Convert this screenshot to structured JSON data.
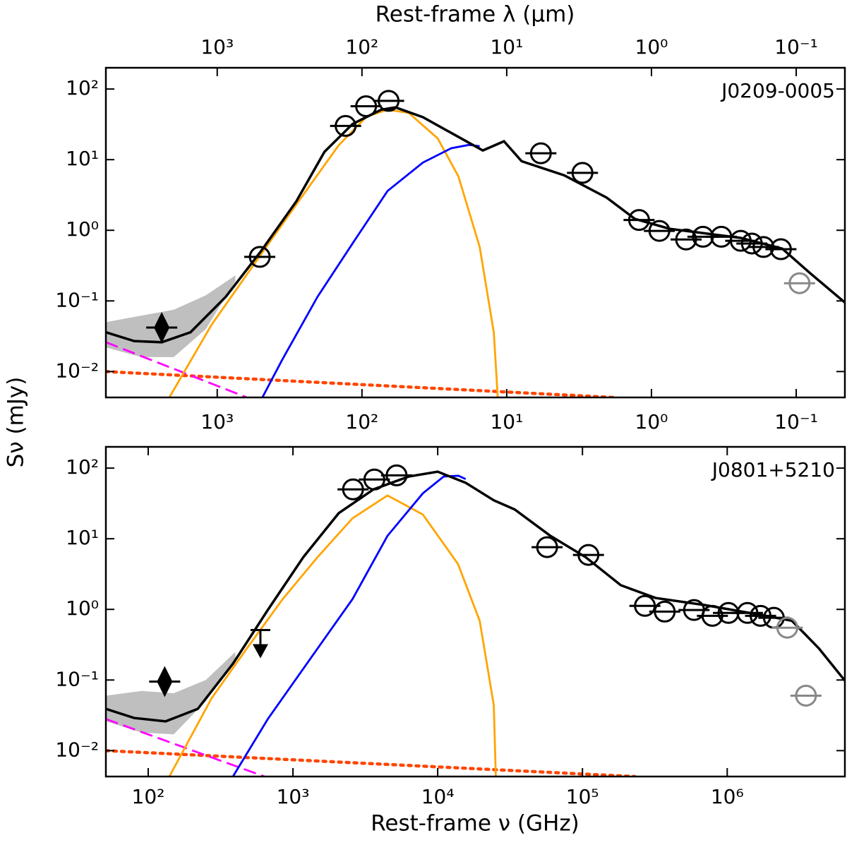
{
  "chart_data": [
    {
      "type": "line",
      "title": "J0209-0005",
      "x2label": "Rest-frame λ (μm)",
      "ylabel": "Sν (mJy)",
      "xscale": "log",
      "yscale": "log",
      "xlim": [
        51,
        6500000
      ],
      "ylim": [
        0.0043,
        200
      ],
      "x2lim": [
        5878,
        0.0461
      ],
      "x2ticks": [
        {
          "value": 1000,
          "label": "10³"
        },
        {
          "value": 100,
          "label": "10²"
        },
        {
          "value": 10,
          "label": "10¹"
        },
        {
          "value": 1,
          "label": "10⁰"
        },
        {
          "value": 0.1,
          "label": "10⁻¹"
        }
      ],
      "yticks": [
        {
          "value": 100,
          "label": "10²"
        },
        {
          "value": 10,
          "label": "10¹"
        },
        {
          "value": 1,
          "label": "10⁰"
        },
        {
          "value": 0.1,
          "label": "10⁻¹"
        },
        {
          "value": 0.01,
          "label": "10⁻²"
        }
      ],
      "band": {
        "color": "#bfbfbf",
        "x": [
          51,
          90,
          150,
          250,
          400
        ],
        "lower": [
          0.022,
          0.016,
          0.016,
          0.04,
          0.19
        ],
        "upper": [
          0.05,
          0.062,
          0.075,
          0.12,
          0.23
        ]
      },
      "lines": [
        {
          "color": "#ff4500",
          "style": "dotted",
          "x": [
            51,
            164000
          ],
          "values": [
            0.01,
            0.0043
          ]
        },
        {
          "color": "#ff00ff",
          "style": "dashed",
          "x": [
            51,
            480
          ],
          "values": [
            0.026,
            0.0043
          ]
        },
        {
          "color": "#ffa500",
          "style": "solid",
          "x": [
            140,
            274,
            603,
            1180,
            2070,
            3240,
            4500,
            6300,
            10000,
            13900,
            19500,
            24400,
            26000
          ],
          "values": [
            0.0043,
            0.046,
            0.46,
            3.2,
            16,
            41,
            51,
            46,
            20,
            5.8,
            0.58,
            0.036,
            0.0043
          ]
        },
        {
          "color": "#0000ff",
          "style": "solid",
          "x": [
            615,
            840,
            1480,
            2580,
            4500,
            7900,
            12400,
            16500,
            19500
          ],
          "values": [
            0.0043,
            0.0145,
            0.115,
            0.65,
            3.6,
            9.1,
            14.5,
            16.2,
            15.5
          ]
        },
        {
          "color": "#000000",
          "style": "solid",
          "x": [
            51,
            80,
            124,
            196,
            343,
            603,
            1055,
            1650,
            2580,
            4070,
            5100,
            7900,
            13900,
            20500,
            28700,
            38000,
            74800,
            147000,
            230000,
            400000,
            1240000,
            2400000,
            3800000,
            6500000
          ],
          "values": [
            0.036,
            0.027,
            0.026,
            0.036,
            0.114,
            0.51,
            2.57,
            12.9,
            32,
            51,
            55,
            40,
            21,
            13.5,
            18.2,
            9.5,
            6.0,
            2.9,
            1.45,
            1.05,
            0.78,
            0.55,
            0.24,
            0.095
          ]
        }
      ],
      "points": [
        {
          "marker": "circle",
          "color": "#000000",
          "x": [
            590,
            2310,
            3200,
            4580,
            51600,
            100000,
            246000,
            340000,
            520000,
            680000,
            910000,
            1240000,
            1480000,
            1780000,
            2350000
          ],
          "values": [
            0.42,
            30,
            57,
            68,
            12.3,
            6.5,
            1.4,
            0.98,
            0.74,
            0.81,
            0.81,
            0.71,
            0.65,
            0.58,
            0.54
          ]
        },
        {
          "marker": "circle",
          "color": "#888888",
          "x": [
            3160000
          ],
          "values": [
            0.178
          ]
        },
        {
          "marker": "diamond",
          "color": "#000000",
          "x": [
            124
          ],
          "values": [
            0.042
          ]
        }
      ]
    },
    {
      "type": "line",
      "title": "J0801+5210",
      "xlabel": "Rest-frame ν (GHz)",
      "xscale": "log",
      "yscale": "log",
      "xlim": [
        51,
        6500000
      ],
      "ylim": [
        0.0043,
        200
      ],
      "xticks": [
        {
          "value": 100,
          "label": "10²"
        },
        {
          "value": 1000,
          "label": "10³"
        },
        {
          "value": 10000,
          "label": "10⁴"
        },
        {
          "value": 100000,
          "label": "10⁵"
        },
        {
          "value": 1000000,
          "label": "10⁶"
        }
      ],
      "yticks": [
        {
          "value": 100,
          "label": "10²"
        },
        {
          "value": 10,
          "label": "10¹"
        },
        {
          "value": 1,
          "label": "10⁰"
        },
        {
          "value": 0.1,
          "label": "10⁻¹"
        },
        {
          "value": 0.01,
          "label": "10⁻²"
        }
      ],
      "band": {
        "color": "#bfbfbf",
        "x": [
          51,
          90,
          150,
          250,
          400
        ],
        "lower": [
          0.026,
          0.018,
          0.017,
          0.05,
          0.2
        ],
        "upper": [
          0.06,
          0.07,
          0.065,
          0.1,
          0.25
        ]
      },
      "lines": [
        {
          "color": "#ff4500",
          "style": "dotted",
          "x": [
            51,
            230000
          ],
          "values": [
            0.01,
            0.0043
          ]
        },
        {
          "color": "#ff00ff",
          "style": "dashed",
          "x": [
            51,
            635
          ],
          "values": [
            0.028,
            0.0043
          ]
        },
        {
          "color": "#ffa500",
          "style": "solid",
          "x": [
            140,
            274,
            480,
            850,
            1480,
            2580,
            4500,
            7900,
            13800,
            19500,
            24400,
            25200
          ],
          "values": [
            0.0043,
            0.055,
            0.28,
            1.4,
            5.5,
            19.5,
            41,
            22,
            4.4,
            0.69,
            0.044,
            0.0043
          ]
        },
        {
          "color": "#0000ff",
          "style": "solid",
          "x": [
            385,
            670,
            1480,
            2580,
            4500,
            7900,
            11000,
            13900,
            15600
          ],
          "values": [
            0.0043,
            0.028,
            0.28,
            1.4,
            11,
            44,
            76,
            78,
            70
          ]
        },
        {
          "color": "#000000",
          "style": "solid",
          "x": [
            51,
            80,
            132,
            220,
            385,
            670,
            1180,
            2070,
            3600,
            6300,
            10000,
            15600,
            24400,
            34000,
            60000,
            105000,
            184000,
            320000,
            700000,
            1740000,
            2800000,
            4300000,
            6500000
          ],
          "values": [
            0.039,
            0.029,
            0.026,
            0.039,
            0.17,
            0.98,
            5.5,
            23,
            50,
            76,
            89,
            62,
            35,
            26,
            11,
            5.5,
            2.2,
            1.45,
            1.15,
            0.83,
            0.69,
            0.28,
            0.098
          ]
        }
      ],
      "points": [
        {
          "marker": "circle",
          "color": "#000000",
          "x": [
            2600,
            3650,
            5200,
            57000,
            110000,
            270000,
            370000,
            590000,
            790000,
            1020000,
            1380000,
            1700000,
            2100000
          ],
          "values": [
            50,
            69,
            79,
            7.6,
            5.9,
            1.12,
            0.93,
            0.98,
            0.81,
            0.89,
            0.89,
            0.81,
            0.76
          ]
        },
        {
          "marker": "circle",
          "color": "#888888",
          "x": [
            2600000,
            3500000
          ],
          "values": [
            0.55,
            0.06
          ]
        },
        {
          "marker": "diamond",
          "color": "#000000",
          "x": [
            130
          ],
          "values": [
            0.095
          ]
        },
        {
          "marker": "upper-limit",
          "color": "#000000",
          "x": [
            596
          ],
          "values": [
            0.51
          ]
        }
      ]
    }
  ]
}
